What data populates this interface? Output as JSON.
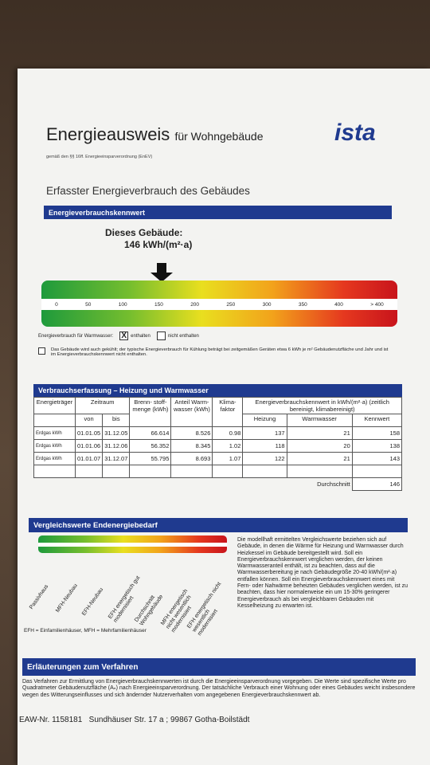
{
  "header": {
    "title": "Energieausweis",
    "title_suffix": "für Wohngebäude",
    "subtitle": "gemäß den §§ 16ff. Energieeinsparverordnung (EnEV)",
    "logo": "ista"
  },
  "section_title": "Erfasster Energieverbrauch des Gebäudes",
  "kennwert": {
    "heading": "Energieverbrauchskennwert",
    "building_label": "Dieses Gebäude:",
    "building_value": "146 kWh/(m²·a)",
    "scale": [
      "0",
      "50",
      "100",
      "150",
      "200",
      "250",
      "300",
      "350",
      "400",
      "> 400"
    ],
    "warmwater_label": "Energieverbrauch für Warmwasser:",
    "checked_mark": "X",
    "included": "enthalten",
    "not_included": "nicht enthalten",
    "cooling_note": "Das Gebäude wird auch gekühlt; der typische Energieverbrauch für Kühlung beträgt bei zeitgemäßen Geräten etwa 6 kWh je m² Gebäudenutzfläche und Jahr und ist im Energieverbrauchskennwert nicht enthalten."
  },
  "table": {
    "heading": "Verbrauchserfassung – Heizung und Warmwasser",
    "columns": {
      "carrier": "Energieträger",
      "period": "Zeitraum",
      "from": "von",
      "to": "bis",
      "fuel": "Brenn- stoff- menge (kWh)",
      "water": "Anteil Warm- wasser (kWh)",
      "climate": "Klima- faktor",
      "kennwert": "Energieverbrauchskennwert in kWh/(m²·a) (zeitlich bereinigt, klimabereinigt)",
      "heating": "Heizung",
      "warmwater": "Warmwasser",
      "total": "Kennwert"
    },
    "rows": [
      [
        "Erdgas kWh",
        "01.01.05",
        "31.12.05",
        "66.614",
        "8.526",
        "0.98",
        "137",
        "21",
        "158"
      ],
      [
        "Erdgas kWh",
        "01.01.06",
        "31.12.06",
        "56.352",
        "8.345",
        "1.02",
        "118",
        "20",
        "138"
      ],
      [
        "Erdgas kWh",
        "01.01.07",
        "31.12.07",
        "55.795",
        "8.693",
        "1.07",
        "122",
        "21",
        "143"
      ]
    ],
    "average_label": "Durchschnitt",
    "average": "146"
  },
  "comparison": {
    "heading": "Vergleichswerte Endenergiebedarf",
    "labels": [
      "Passivhaus",
      "MFH-Neubau",
      "EFH-Neubau",
      "EFH energetisch gut modernisiert",
      "Durchschnitt Wohngebäude",
      "MFH energetisch nicht wesentlich modernisiert",
      "EFH energetisch nicht wesentlich modernisiert"
    ],
    "footnote": "EFH = Einfamilienhäuser, MFH = Mehrfamilienhäuser",
    "text": "Die modellhaft ermittelten Vergleichswerte beziehen sich auf Gebäude, in denen die Wärme für Heizung und Warmwasser durch Heizkessel im Gebäude bereitgestellt wird. Soll ein Energieverbrauchskennwert verglichen werden, der keinen Warmwasseranteil enthält, ist zu beachten, dass auf die Warmwasserbereitung je nach Gebäudegröße 20-40 kWh/(m²·a) entfallen können. Soll ein Energieverbrauchskennwert eines mit Fern- oder Nahwärme beheizten Gebäudes verglichen werden, ist zu beachten, dass hier normalerweise ein um 15-30% geringerer Energieverbrauch als bei vergleichbaren Gebäuden mit Kesselheizung zu erwarten ist."
  },
  "explanation": {
    "heading": "Erläuterungen zum Verfahren",
    "text": "Das Verfahren zur Ermittlung von Energieverbrauchskennwerten ist durch die Energieeinsparverordnung vorgegeben. Die Werte sind spezifische Werte pro Quadratmeter Gebäudenutzfläche (Aₙ) nach Energieeinsparverordnung. Der tatsächliche Verbrauch einer Wohnung oder eines Gebäudes weicht insbesondere wegen des Witterungseinflusses und sich ändernder Nutzerverhalten vom angegebenen Energieverbrauchskennwert ab."
  },
  "footer": {
    "number": "EAW-Nr. 1158181",
    "address": "Sundhäuser Str. 17 a ; 99867 Gotha-Boilstädt"
  }
}
